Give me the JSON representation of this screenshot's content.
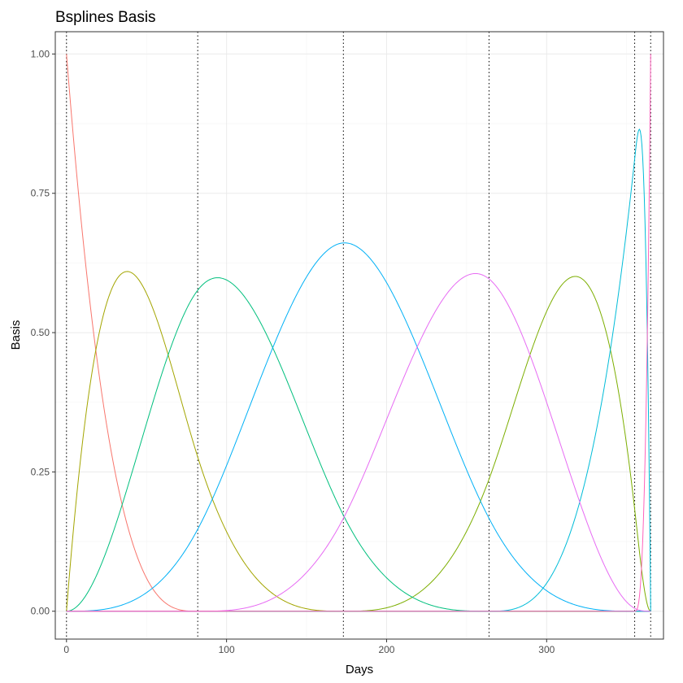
{
  "chart_data": {
    "type": "line",
    "title": "Bsplines Basis",
    "xlabel": "Days",
    "ylabel": "Basis",
    "xlim": [
      -7,
      373
    ],
    "ylim": [
      -0.05,
      1.04
    ],
    "x_ticks": [
      0,
      100,
      200,
      300
    ],
    "x_tick_labels": [
      "0",
      "100",
      "200",
      "300"
    ],
    "y_ticks": [
      0,
      0.25,
      0.5,
      0.75,
      1
    ],
    "y_tick_labels": [
      "0.00",
      "0.25",
      "0.50",
      "0.75",
      "1.00"
    ],
    "grid": true,
    "legend": "none",
    "knots": [
      0,
      82,
      173,
      264,
      355,
      365
    ],
    "curve_knots": [
      0,
      0,
      0,
      0,
      82,
      173,
      264,
      355,
      365,
      365,
      365,
      365
    ],
    "series": [
      {
        "color": "#F8766D"
      },
      {
        "color": "#A3A500"
      },
      {
        "color": "#00BF7D"
      },
      {
        "color": "#00B0F6"
      },
      {
        "color": "#E76BF3"
      },
      {
        "color": "#7CAE00"
      },
      {
        "color": "#00BCD8"
      },
      {
        "color": "#FF62BC"
      }
    ],
    "series_order": [
      0,
      1,
      5,
      2,
      3,
      6,
      4,
      7
    ]
  }
}
